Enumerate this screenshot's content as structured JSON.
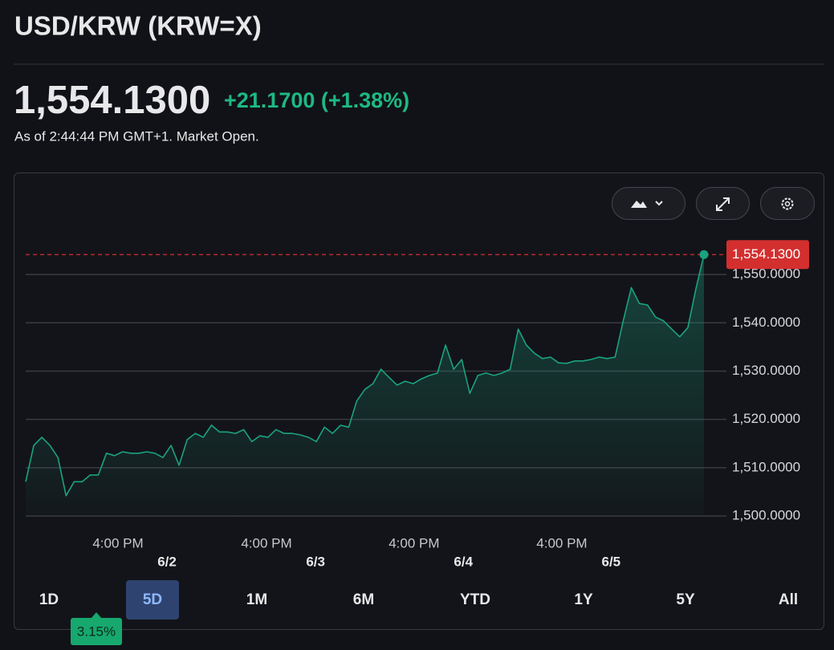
{
  "header": {
    "title": "USD/KRW (KRW=X)",
    "price": "1,554.1300",
    "change": "+21.1700 (+1.38%)",
    "as_of": "As of 2:44:44 PM GMT+1. Market Open."
  },
  "chart_data": {
    "type": "area",
    "series": [
      {
        "name": "USD/KRW",
        "color": "#1aa37e",
        "values": [
          1507.1,
          1514.6,
          1516.3,
          1514.6,
          1512.1,
          1504.2,
          1507.1,
          1507.1,
          1508.5,
          1508.5,
          1513,
          1512.5,
          1513.3,
          1513,
          1513,
          1513.3,
          1513,
          1512.1,
          1514.6,
          1510.5,
          1515.8,
          1517.1,
          1516.3,
          1518.8,
          1517.4,
          1517.4,
          1517.1,
          1517.9,
          1515.4,
          1516.6,
          1516.3,
          1517.9,
          1517.1,
          1517.1,
          1516.8,
          1516.3,
          1515.4,
          1518.4,
          1517.1,
          1518.8,
          1518.4,
          1523.8,
          1526.2,
          1527.4,
          1530.4,
          1528.7,
          1527.1,
          1527.9,
          1527.4,
          1528.4,
          1529.1,
          1529.6,
          1535.4,
          1530.4,
          1532.4,
          1525.4,
          1529.1,
          1529.6,
          1529.1,
          1529.6,
          1530.4,
          1538.7,
          1535.4,
          1533.7,
          1532.6,
          1532.9,
          1531.7,
          1531.6,
          1532.1,
          1532.1,
          1532.4,
          1532.9,
          1532.6,
          1532.9,
          1540.4,
          1547.3,
          1544,
          1543.7,
          1541.2,
          1540.4,
          1538.7,
          1537.1,
          1539,
          1547,
          1554.13
        ]
      }
    ],
    "xlim": [
      0,
      84
    ],
    "xticks": [
      {
        "value": 11.43,
        "label": "4:00 PM"
      },
      {
        "value": 29.82,
        "label": "4:00 PM"
      },
      {
        "value": 48.1,
        "label": "4:00 PM"
      },
      {
        "value": 66.4,
        "label": "4:00 PM"
      }
    ],
    "date_ticks": [
      {
        "value": 17.5,
        "label": "6/2"
      },
      {
        "value": 35.9,
        "label": "6/3"
      },
      {
        "value": 54.2,
        "label": "6/4"
      },
      {
        "value": 72.5,
        "label": "6/5"
      }
    ],
    "ylim": [
      1500,
      1557
    ],
    "yticks": [
      {
        "value": 1500,
        "label": "1,500.0000"
      },
      {
        "value": 1510,
        "label": "1,510.0000"
      },
      {
        "value": 1520,
        "label": "1,520.0000"
      },
      {
        "value": 1530,
        "label": "1,530.0000"
      },
      {
        "value": 1540,
        "label": "1,540.0000"
      },
      {
        "value": 1550,
        "label": "1,550.0000"
      }
    ],
    "grid": true,
    "reference_line": {
      "value": 1554.13,
      "label": "1,554.1300",
      "color": "#d32f2f"
    }
  },
  "ranges": [
    "1D",
    "5D",
    "1M",
    "6M",
    "YTD",
    "1Y",
    "5Y",
    "All"
  ],
  "selected_range": 1,
  "tooltip": "3.15%"
}
